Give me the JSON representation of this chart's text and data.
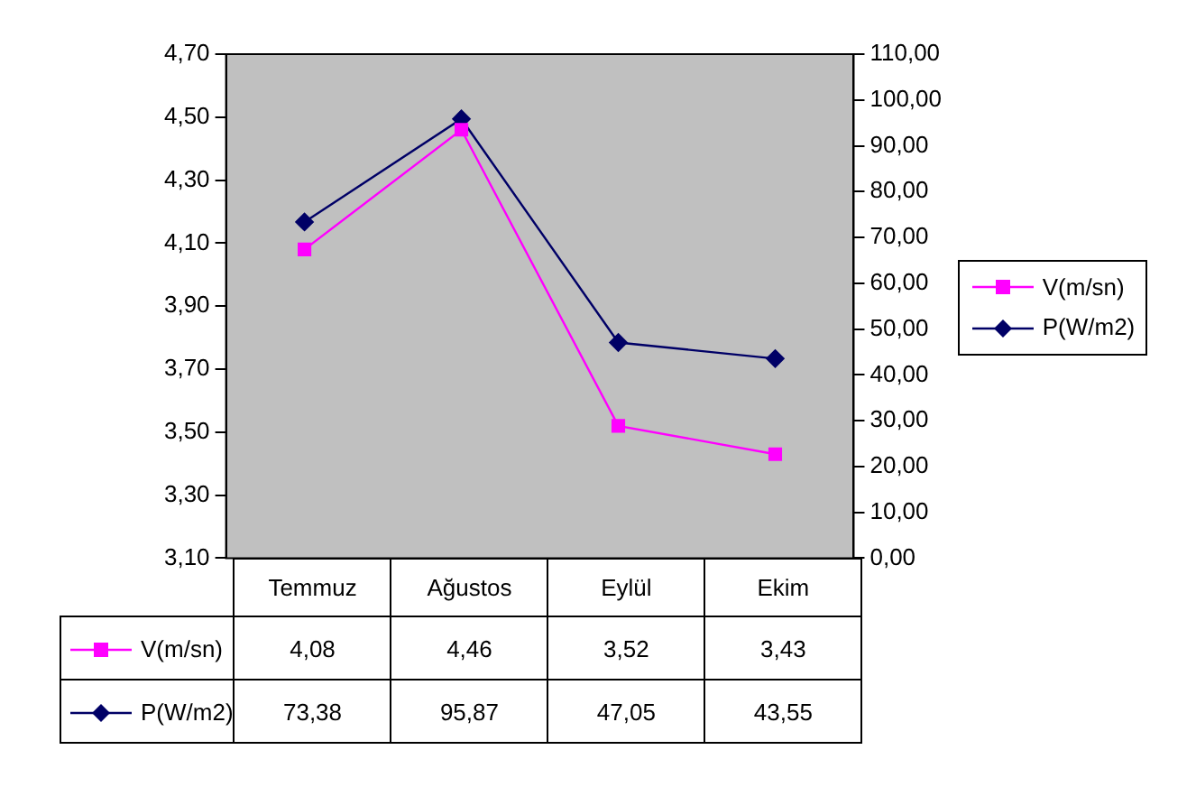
{
  "chart_data": {
    "type": "line",
    "categories": [
      "Temmuz",
      "Ağustos",
      "Eylül",
      "Ekim"
    ],
    "series": [
      {
        "name": "V(m/sn)",
        "color": "#ff00ff",
        "marker": "square",
        "values": [
          4.08,
          4.46,
          3.52,
          3.43
        ]
      },
      {
        "name": "P(W/m2)",
        "color": "#000066",
        "marker": "diamond",
        "axis": "y2",
        "values": [
          73.38,
          95.87,
          47.05,
          43.55
        ]
      }
    ],
    "ylim": [
      3.1,
      4.7
    ],
    "yticks": [
      {
        "value": 3.1,
        "label": "3,10"
      },
      {
        "value": 3.3,
        "label": "3,30"
      },
      {
        "value": 3.5,
        "label": "3,50"
      },
      {
        "value": 3.7,
        "label": "3,70"
      },
      {
        "value": 3.9,
        "label": "3,90"
      },
      {
        "value": 4.1,
        "label": "4,10"
      },
      {
        "value": 4.3,
        "label": "4,30"
      },
      {
        "value": 4.5,
        "label": "4,50"
      },
      {
        "value": 4.7,
        "label": "4,70"
      }
    ],
    "y2lim": [
      0,
      110
    ],
    "y2ticks": [
      {
        "value": 0,
        "label": "0,00"
      },
      {
        "value": 10,
        "label": "10,00"
      },
      {
        "value": 20,
        "label": "20,00"
      },
      {
        "value": 30,
        "label": "30,00"
      },
      {
        "value": 40,
        "label": "40,00"
      },
      {
        "value": 50,
        "label": "50,00"
      },
      {
        "value": 60,
        "label": "60,00"
      },
      {
        "value": 70,
        "label": "70,00"
      },
      {
        "value": 80,
        "label": "80,00"
      },
      {
        "value": 90,
        "label": "90,00"
      },
      {
        "value": 100,
        "label": "100,00"
      },
      {
        "value": 110,
        "label": "110,00"
      }
    ],
    "value_labels": [
      [
        "4,08",
        "4,46",
        "3,52",
        "3,43"
      ],
      [
        "73,38",
        "95,87",
        "47,05",
        "43,55"
      ]
    ],
    "grid": false,
    "legend": "right",
    "line_style": "solid"
  }
}
